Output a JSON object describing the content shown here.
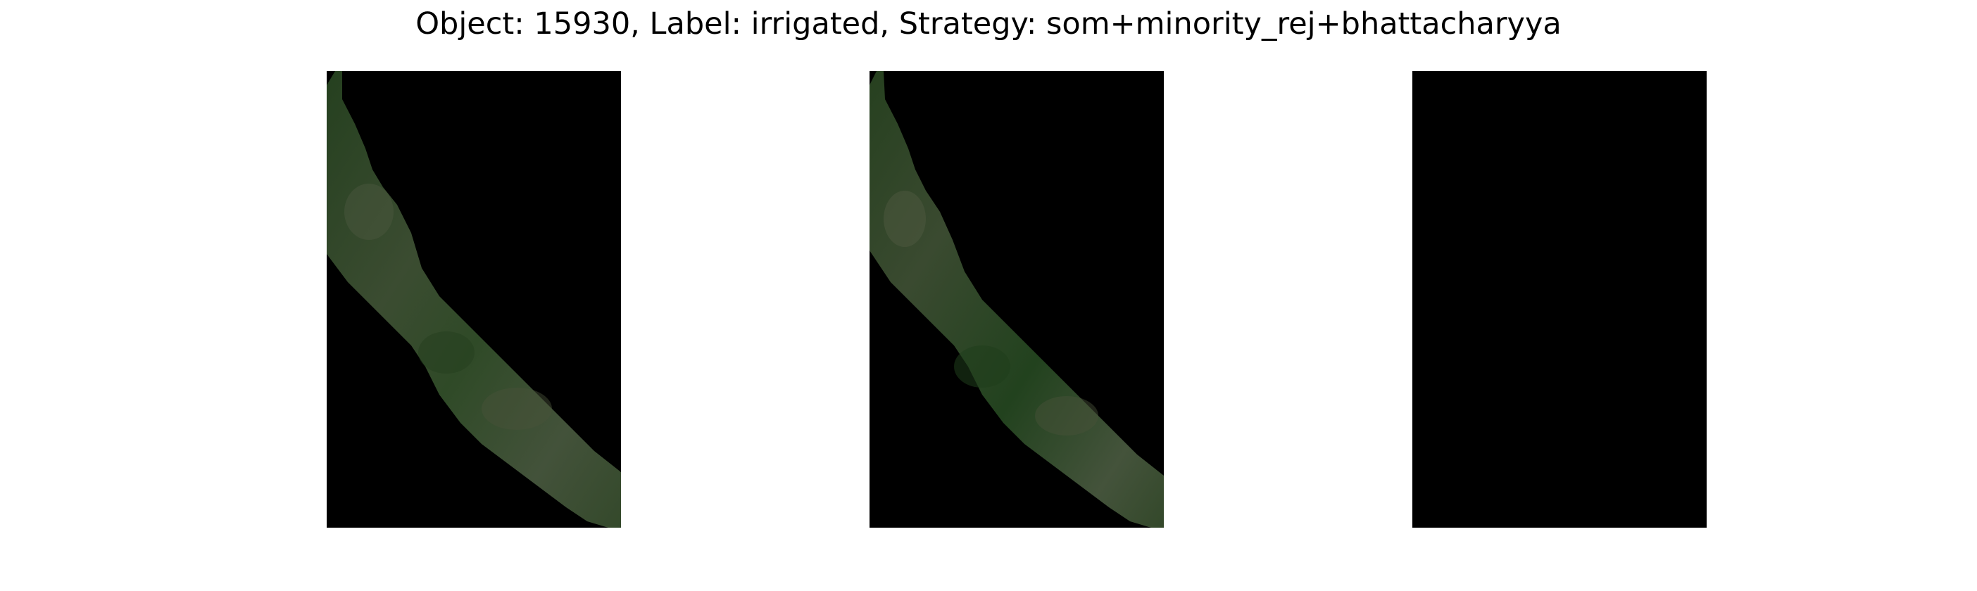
{
  "figure": {
    "title": "Object: 15930, Label: irrigated, Strategy: som+minority_rej+bhattacharyya"
  },
  "panels": [
    {
      "id": "panel-1",
      "content": "field-crop",
      "description_name": "satellite-image-patch"
    },
    {
      "id": "panel-2",
      "content": "field-crop",
      "description_name": "satellite-image-patch"
    },
    {
      "id": "panel-3",
      "content": "empty-mask",
      "description_name": "empty-mask-patch"
    }
  ],
  "colors": {
    "background": "#ffffff",
    "panel_background": "#000000",
    "field_dark": "#26401f",
    "field_mid": "#34502a",
    "field_light": "#4b5a3c",
    "field_brown": "#5a5240"
  }
}
